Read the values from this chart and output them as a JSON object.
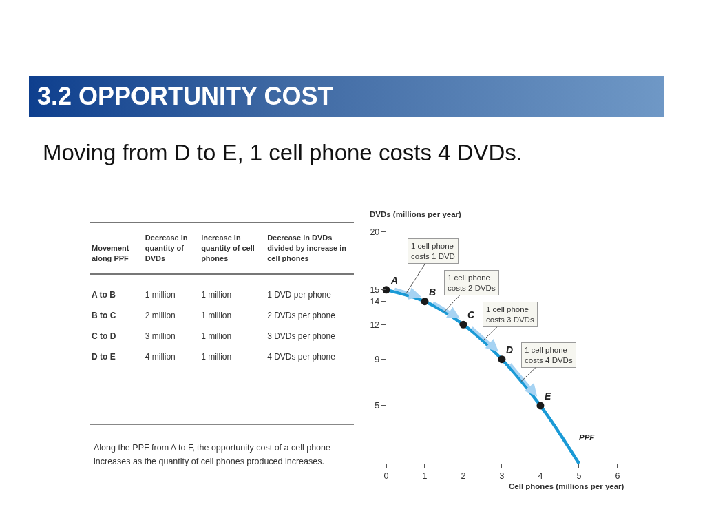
{
  "chart_data": [
    {
      "type": "other",
      "title": "3.2 OPPORTUNITY COST",
      "subtitle": "Moving from D to E, 1 cell phone costs 4 DVDs.",
      "annotations": [
        "Movement along PPF",
        "Decrease in quantity of DVDs",
        "Increase in quantity of cell phones",
        "Decrease in DVDs divided by increase in cell phones",
        "A to B",
        "1 million",
        "1 million",
        "1 DVD per phone",
        "B to C",
        "2 million",
        "1 million",
        "2 DVDs per phone",
        "C to D",
        "3 million",
        "1 million",
        "3 DVDs per phone",
        "D to E",
        "4 million",
        "1 million",
        "4 DVDs per phone",
        "Along the PPF from A to F, the opportunity cost of a cell phone increases as the quantity of cell phones produced increases."
      ]
    },
    {
      "type": "line",
      "xlabel": "Cell phones (millions per year)",
      "ylabel": "DVDs (millions per year)",
      "xlim": [
        0,
        6.18
      ],
      "ylim": [
        0,
        20.7
      ],
      "xticks": [
        0,
        1,
        2,
        3,
        4,
        5,
        6
      ],
      "yticks": [
        5,
        9,
        12,
        14,
        15,
        20
      ],
      "series": [
        {
          "name": "PPF",
          "type": "line",
          "color": "#1a9ad6",
          "marker": "none",
          "x": [
            0,
            1,
            2,
            3,
            4,
            5
          ],
          "values": [
            15,
            14,
            12,
            9,
            5,
            0
          ]
        },
        {
          "type": "scatter",
          "color": "#1a1a1a",
          "marker": "circle",
          "x": [
            0,
            1,
            2,
            3,
            4
          ],
          "values": [
            15,
            14,
            12,
            9,
            5
          ]
        }
      ],
      "annotations": [
        {
          "text": "A",
          "x": 0,
          "y": 15
        },
        {
          "text": "B",
          "x": 1,
          "y": 14
        },
        {
          "text": "C",
          "x": 2,
          "y": 12
        },
        {
          "text": "D",
          "x": 3,
          "y": 9
        },
        {
          "text": "E",
          "x": 4,
          "y": 5
        },
        {
          "text": "1 cell phone costs 1 DVD",
          "x": 0.5,
          "y": 14.6
        },
        {
          "text": "1 cell phone costs 2 DVDs",
          "x": 1.5,
          "y": 13.1
        },
        {
          "text": "1 cell phone costs 3 DVDs",
          "x": 2.5,
          "y": 10.6
        },
        {
          "text": "1 cell phone costs 4 DVDs",
          "x": 3.5,
          "y": 7.1
        }
      ]
    }
  ]
}
